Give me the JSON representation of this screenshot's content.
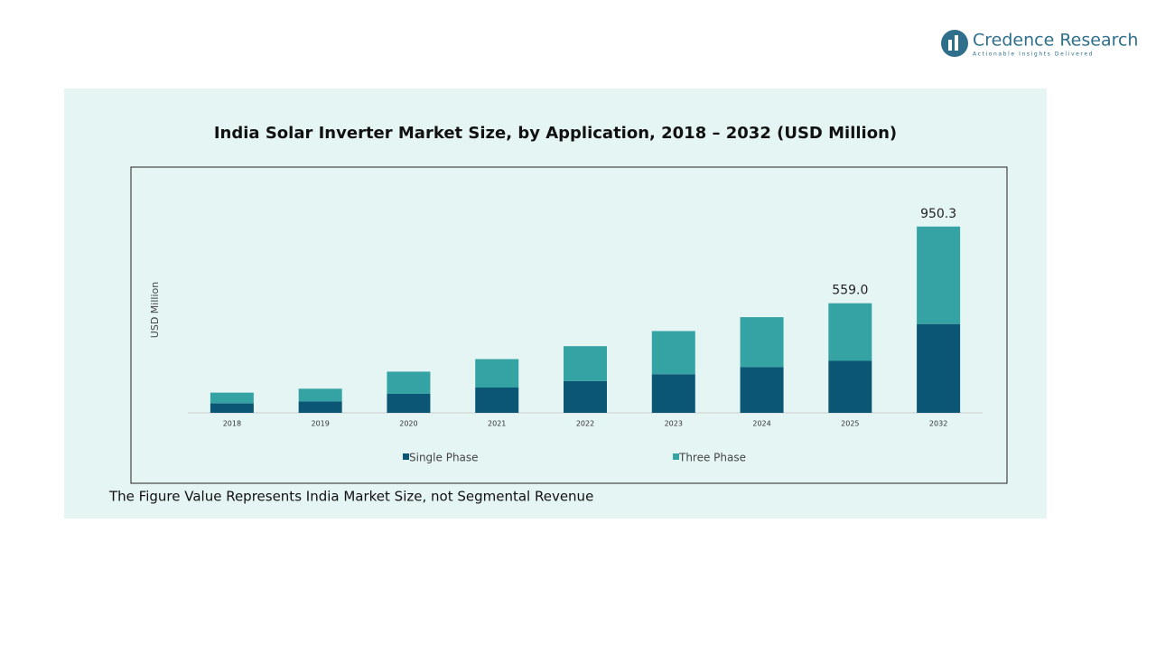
{
  "logo": {
    "name": "Credence Research",
    "tagline": "Actionable Insights Delivered"
  },
  "chart_data": {
    "type": "stacked-bar",
    "title": "India Solar Inverter Market Size, by Application, 2018 – 2032 (USD Million)",
    "y_label": "USD Million",
    "categories": [
      "2018",
      "2019",
      "2020",
      "2021",
      "2022",
      "2023",
      "2024",
      "2025",
      "2032"
    ],
    "series": [
      {
        "name": "Single Phase",
        "color": "#0b5675",
        "values": [
          48,
          58,
          97,
          129,
          162,
          197,
          233,
          265,
          453
        ]
      },
      {
        "name": "Three Phase",
        "color": "#35a3a3",
        "values": [
          55,
          65,
          113,
          145,
          178,
          220,
          255,
          294,
          497.3
        ]
      }
    ],
    "totals": [
      null,
      null,
      null,
      null,
      null,
      null,
      null,
      559,
      950.3
    ],
    "total_labels": [
      null,
      null,
      null,
      null,
      null,
      null,
      null,
      "559.0",
      "950.3"
    ],
    "ylim": [
      0,
      1000
    ],
    "legend": "bottom",
    "footnote": "The Figure Value Represents India Market Size, not Segmental Revenue"
  }
}
